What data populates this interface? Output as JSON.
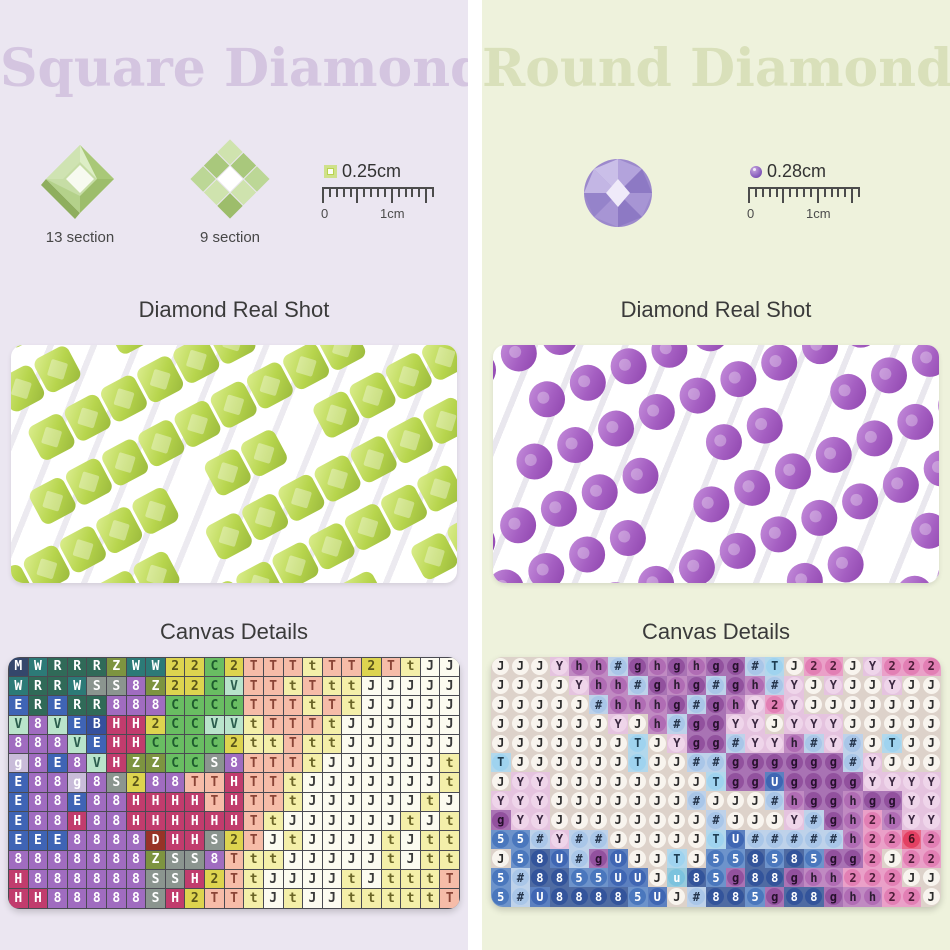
{
  "panels": [
    {
      "title": "Square Diamond",
      "colors": {
        "bg": "#ebe6f1",
        "title": "#d4c5e0"
      },
      "icons": [
        {
          "name": "square-diamond-13-icon",
          "label": "13 section"
        },
        {
          "name": "square-diamond-9-icon",
          "label": "9 section"
        }
      ],
      "ruler": {
        "size": "0.25cm",
        "zero": "0",
        "one": "1cm"
      },
      "real_shot_title": "Diamond Real Shot",
      "canvas_title": "Canvas Details",
      "photo": {
        "shape": "square",
        "base": "#b7d54d",
        "light": "#dcee90",
        "dark": "#9ab93c",
        "rows": 9,
        "per_row": 14
      },
      "canvas": {
        "style": "square",
        "grid_line": "#4a4a52",
        "palette": {
          "M": {
            "bg": "#34476b",
            "fg": "#ffffff"
          },
          "W": {
            "bg": "#2c7a77",
            "fg": "#ffffff"
          },
          "R": {
            "bg": "#306a58",
            "fg": "#ffffff"
          },
          "Z": {
            "bg": "#7d9440",
            "fg": "#ffffff"
          },
          "S": {
            "bg": "#8b958f",
            "fg": "#ffffff"
          },
          "8": {
            "bg": "#a06cc0",
            "fg": "#ffffff"
          },
          "E": {
            "bg": "#3f64b5",
            "fg": "#ffffff"
          },
          "B": {
            "bg": "#35509d",
            "fg": "#ffffff"
          },
          "V": {
            "bg": "#b9e4cb",
            "fg": "#2c5e4e"
          },
          "C": {
            "bg": "#69bd62",
            "fg": "#1e5c2e"
          },
          "2": {
            "bg": "#ddd44f",
            "fg": "#5a551a"
          },
          "g": {
            "bg": "#c9bcd9",
            "fg": "#ffffff"
          },
          "H": {
            "bg": "#c13c6d",
            "fg": "#ffffff"
          },
          "D": {
            "bg": "#973327",
            "fg": "#ffffff"
          },
          "T": {
            "bg": "#f6bca8",
            "fg": "#8a4436"
          },
          "t": {
            "bg": "#f4efa9",
            "fg": "#6a6426"
          },
          "J": {
            "bg": "#fcfbf0",
            "fg": "#3a3a3a"
          }
        },
        "rows": [
          "MWRRRZWW22C2TTTtTT2TtJJ",
          "WRRWSS8Z22CVTTtTttJJJJJ",
          "ERERR888CCCCTTTtTtJJJJJ",
          "V8VEBHH2CCVVtTTTtJJJJJJ",
          "888VEHHCCCC2ttTttJJJJJJ",
          "g8E8VHZZCCS8TTTtJJJJJJt",
          "E88g8S288TTHTTtJJJJJJJt",
          "E88E88HHHHTHTTtJJJJJJtJ",
          "E88H88HHHHHHTtJJJJJJtJt",
          "EEE8888DHHS2TJtJJJJtJtt",
          "8888888ZSS8TttJJJJJtJtt",
          "H888888SSH2TtJJJJtJtttT",
          "HH88888SH2TTtJtJJtttttT"
        ]
      }
    },
    {
      "title": "Round Diamond",
      "colors": {
        "bg": "#eef2dc",
        "title": "#d9e0ba"
      },
      "icons": [
        {
          "name": "round-diamond-icon",
          "label": ""
        }
      ],
      "ruler": {
        "size": "0.28cm",
        "zero": "0",
        "one": "1cm"
      },
      "real_shot_title": "Diamond Real Shot",
      "canvas_title": "Canvas Details",
      "photo": {
        "shape": "round",
        "base": "#a55fc2",
        "light": "#c792dd",
        "dark": "#8d43ac",
        "rows": 9,
        "per_row": 14
      },
      "canvas": {
        "style": "round",
        "bg": "#ddd2ca",
        "palette": {
          "J": {
            "sq": "#ddd2ca",
            "bg": "#f8f4ee",
            "fg": "#2b2b2b"
          },
          "Y": {
            "sq": "#e5c3df",
            "bg": "#efd5ea",
            "fg": "#3a2740"
          },
          "h": {
            "sq": "#c08ac2",
            "bg": "#b06cb4",
            "fg": "#2d1d33"
          },
          "g": {
            "sq": "#a973b4",
            "bg": "#92519e",
            "fg": "#26102c"
          },
          "#": {
            "sq": "#bed2ea",
            "bg": "#a9c6e8",
            "fg": "#26364d"
          },
          "T": {
            "sq": "#b2d8ec",
            "bg": "#9fd3ef",
            "fg": "#1d3d52"
          },
          "2": {
            "sq": "#eaa0c8",
            "bg": "#e27fb4",
            "fg": "#4d1d38"
          },
          "6": {
            "sq": "#ea6d8c",
            "bg": "#e34063",
            "fg": "#47101f"
          },
          "5": {
            "sq": "#6d93cb",
            "bg": "#4a77bd",
            "fg": "#ffffff"
          },
          "8": {
            "sq": "#4f6ba3",
            "bg": "#33549b",
            "fg": "#ffffff"
          },
          "U": {
            "sq": "#5c80c0",
            "bg": "#3f66b3",
            "fg": "#ffffff"
          },
          "u": {
            "sq": "#97cbdd",
            "bg": "#7cc3de",
            "fg": "#ffffff"
          }
        },
        "rows": [
          "JJJYhh#ghghgg#TJ22JY222",
          "JJJJYhh#ghg#gh#YJYJJYJJ",
          "JJJJJ#hhhg#ghY2YJJJJJJJ",
          "JJJJJJYJh#ggYYJYYYJJJJJ",
          "JJJJJJJTJYgg#YYh#Y#JTJJ",
          "TJJJJJJTJJ##gggggg#YJJJ",
          "JYYJJJJJJJJTggUggggYYYY",
          "YYYJJJJJJJ#JJJ#hgghggYY",
          "gYYJJJJJJJJ#JJJY#gh2hYY",
          "55#Y##JJJJJTU#####h2262",
          "J58U#gUJJTJ558585gg2J22",
          "5#8855UUJu85g88ghh222JJ",
          "5#U88885UJ#885g88ghh22J"
        ]
      }
    }
  ]
}
